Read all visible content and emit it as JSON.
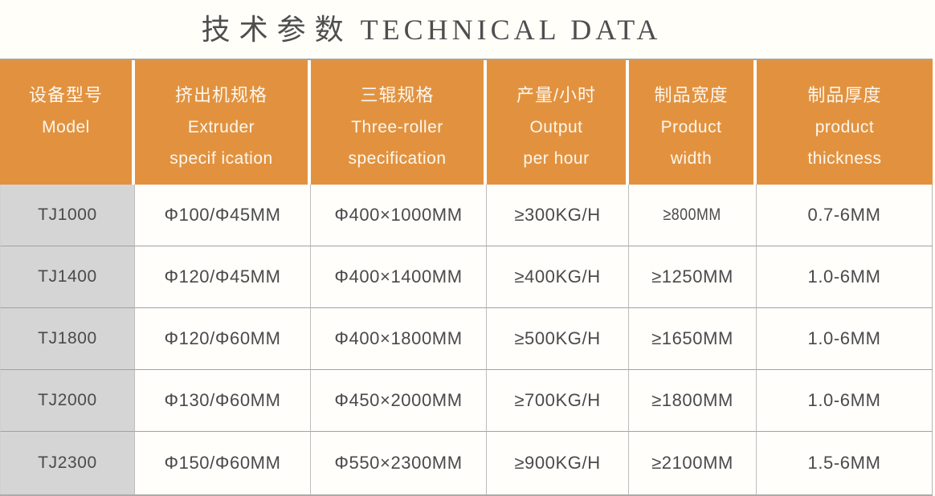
{
  "title": {
    "cn": "技术参数",
    "en": "TECHNICAL DATA"
  },
  "table": {
    "columns": [
      {
        "cn": "设备型号",
        "en": [
          "Model"
        ]
      },
      {
        "cn": "挤出机规格",
        "en": [
          "Extruder",
          "specif ication"
        ]
      },
      {
        "cn": "三辊规格",
        "en": [
          "Three-roller",
          "specification"
        ]
      },
      {
        "cn": "产量/小时",
        "en": [
          "Output",
          "per hour"
        ]
      },
      {
        "cn": "制品宽度",
        "en": [
          "Product",
          "width"
        ]
      },
      {
        "cn": "制品厚度",
        "en": [
          "product",
          "thickness"
        ]
      }
    ],
    "rows": [
      [
        "TJ1000",
        "Φ100/Φ45MM",
        "Φ400×1000MM",
        "≥300KG/H",
        "≥800MM",
        "0.7-6MM"
      ],
      [
        "TJ1400",
        "Φ120/Φ45MM",
        "Φ400×1400MM",
        "≥400KG/H",
        "≥1250MM",
        "1.0-6MM"
      ],
      [
        "TJ1800",
        "Φ120/Φ60MM",
        "Φ400×1800MM",
        "≥500KG/H",
        "≥1650MM",
        "1.0-6MM"
      ],
      [
        "TJ2000",
        "Φ130/Φ60MM",
        "Φ450×2000MM",
        "≥700KG/H",
        "≥1800MM",
        "1.0-6MM"
      ],
      [
        "TJ2300",
        "Φ150/Φ60MM",
        "Φ550×2300MM",
        "≥900KG/H",
        "≥2100MM",
        "1.5-6MM"
      ]
    ]
  },
  "colors": {
    "header_bg": "#E2923F",
    "header_text": "#FCF7EF",
    "model_column_bg": "#D5D5D5",
    "row_border": "#A2A2A2",
    "column_border": "#BDBDBD",
    "text": "#4A4A4A",
    "title_text": "#4E4E4E",
    "page_bg": "#FFFEF9"
  }
}
